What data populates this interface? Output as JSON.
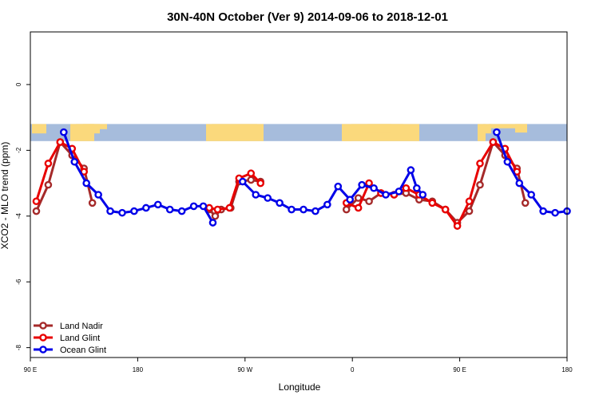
{
  "chart_data": {
    "type": "line",
    "title": "30N-40N October (Ver 9)   2014-09-06 to 2018-12-01",
    "xlabel": "Longitude",
    "ylabel": "XCO2 - MLO trend (ppm)",
    "xlim": [
      90,
      540
    ],
    "ylim": [
      -8.3,
      1.6
    ],
    "x_ticks": [
      {
        "value": 90,
        "label": "90 E"
      },
      {
        "value": 180,
        "label": "180"
      },
      {
        "value": 270,
        "label": "90 W"
      },
      {
        "value": 360,
        "label": "0"
      },
      {
        "value": 450,
        "label": "90 E"
      },
      {
        "value": 540,
        "label": "180"
      }
    ],
    "y_ticks": [
      {
        "value": 0,
        "label": "0"
      },
      {
        "value": -2,
        "label": "-2"
      },
      {
        "value": -4,
        "label": "-4"
      },
      {
        "value": -6,
        "label": "-6"
      },
      {
        "value": -8,
        "label": "-8"
      }
    ],
    "map_strip": {
      "y_top": -1.2,
      "y_bottom": -1.72,
      "ocean_color": "#a6bcdc",
      "land_color": "#fbd97c"
    },
    "legend": {
      "position": "bottom-left"
    },
    "series": [
      {
        "name": "Land Nadir",
        "color": "#a52a2a",
        "segments": [
          [
            [
              95,
              -3.85
            ],
            [
              105,
              -3.05
            ],
            [
              115,
              -1.75
            ],
            [
              125,
              -2.15
            ],
            [
              135,
              -2.55
            ],
            [
              142,
              -3.6
            ]
          ],
          [
            [
              240,
              -3.8
            ],
            [
              245,
              -4.0
            ],
            [
              250,
              -3.8
            ],
            [
              258,
              -3.75
            ],
            [
              265,
              -2.95
            ],
            [
              275,
              -2.9
            ],
            [
              283,
              -2.95
            ]
          ],
          [
            [
              355,
              -3.8
            ],
            [
              365,
              -3.45
            ],
            [
              374,
              -3.55
            ],
            [
              384,
              -3.3
            ],
            [
              395,
              -3.35
            ],
            [
              405,
              -3.3
            ],
            [
              416,
              -3.5
            ],
            [
              427,
              -3.55
            ],
            [
              438,
              -3.8
            ],
            [
              448,
              -4.2
            ],
            [
              458,
              -3.85
            ],
            [
              467,
              -3.05
            ],
            [
              478,
              -1.75
            ],
            [
              488,
              -2.15
            ],
            [
              498,
              -2.55
            ],
            [
              505,
              -3.6
            ]
          ]
        ]
      },
      {
        "name": "Land Glint",
        "color": "#e80000",
        "segments": [
          [
            [
              95,
              -3.55
            ],
            [
              105,
              -2.4
            ],
            [
              115,
              -1.75
            ],
            [
              125,
              -1.95
            ],
            [
              135,
              -2.65
            ]
          ],
          [
            [
              240,
              -3.75
            ],
            [
              247,
              -3.8
            ],
            [
              257,
              -3.75
            ],
            [
              265,
              -2.85
            ],
            [
              275,
              -2.7
            ],
            [
              283,
              -3.0
            ]
          ],
          [
            [
              355,
              -3.6
            ],
            [
              365,
              -3.75
            ],
            [
              374,
              -3.0
            ],
            [
              384,
              -3.3
            ],
            [
              395,
              -3.35
            ],
            [
              405,
              -3.15
            ],
            [
              416,
              -3.35
            ],
            [
              427,
              -3.6
            ],
            [
              438,
              -3.8
            ],
            [
              448,
              -4.3
            ],
            [
              458,
              -3.55
            ],
            [
              467,
              -2.4
            ],
            [
              478,
              -1.75
            ],
            [
              488,
              -1.95
            ],
            [
              498,
              -2.65
            ]
          ]
        ]
      },
      {
        "name": "Ocean Glint",
        "color": "#0000e8",
        "segments": [
          [
            [
              118,
              -1.45
            ],
            [
              127,
              -2.35
            ],
            [
              137,
              -3.0
            ],
            [
              147,
              -3.35
            ],
            [
              157,
              -3.85
            ],
            [
              167,
              -3.9
            ],
            [
              177,
              -3.85
            ],
            [
              187,
              -3.75
            ],
            [
              197,
              -3.65
            ],
            [
              207,
              -3.8
            ],
            [
              217,
              -3.85
            ],
            [
              227,
              -3.7
            ],
            [
              235,
              -3.7
            ],
            [
              243,
              -4.2
            ]
          ],
          [
            [
              268,
              -2.95
            ],
            [
              279,
              -3.35
            ],
            [
              289,
              -3.45
            ],
            [
              299,
              -3.6
            ],
            [
              309,
              -3.8
            ],
            [
              319,
              -3.8
            ],
            [
              329,
              -3.85
            ],
            [
              339,
              -3.65
            ],
            [
              348,
              -3.1
            ],
            [
              358,
              -3.5
            ],
            [
              368,
              -3.05
            ],
            [
              378,
              -3.15
            ],
            [
              388,
              -3.35
            ],
            [
              399,
              -3.25
            ],
            [
              409,
              -2.6
            ],
            [
              414,
              -3.15
            ],
            [
              419,
              -3.35
            ]
          ],
          [
            [
              481,
              -1.45
            ],
            [
              490,
              -2.35
            ],
            [
              500,
              -3.0
            ],
            [
              510,
              -3.35
            ],
            [
              520,
              -3.85
            ],
            [
              530,
              -3.9
            ],
            [
              540,
              -3.85
            ]
          ]
        ]
      }
    ]
  }
}
